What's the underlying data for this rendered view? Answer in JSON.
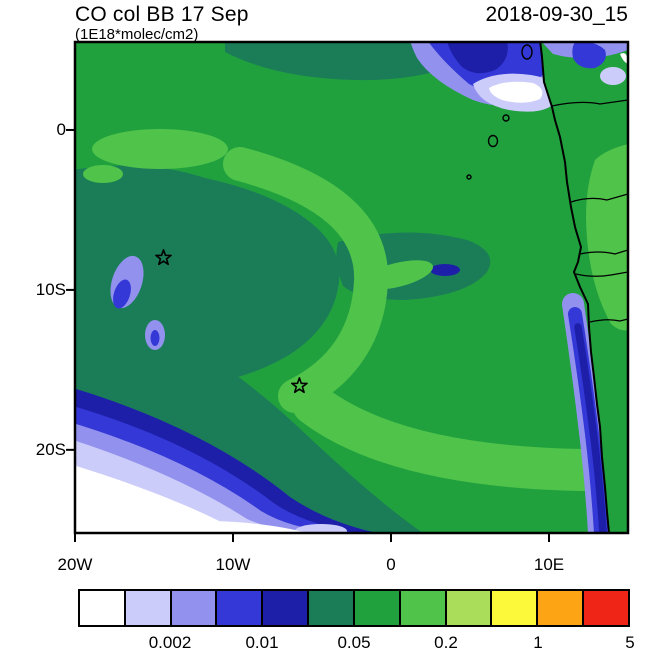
{
  "header": {
    "title": "CO col BB 17 Sep",
    "subtitle": "(1E18*molec/cm2)",
    "datetime": "2018-09-30_15"
  },
  "chart_data": {
    "type": "heatmap",
    "title": "CO col BB 17 Sep",
    "units": "1E18*molec/cm2",
    "time_label": "2018-09-30_15",
    "projection": {
      "lon_min": -20,
      "lon_max": 15,
      "lat_min": -25.2,
      "lat_max": 5.5
    },
    "x_ticks": [
      {
        "lon": -20,
        "label": "20W"
      },
      {
        "lon": -10,
        "label": "10W"
      },
      {
        "lon": 0,
        "label": "0"
      },
      {
        "lon": 10,
        "label": "10E"
      }
    ],
    "y_ticks": [
      {
        "lat": 0,
        "label": "0"
      },
      {
        "lat": -10,
        "label": "10S"
      },
      {
        "lat": -20,
        "label": "20S"
      }
    ],
    "palette": {
      "colors": [
        "#ffffff",
        "#ccccfa",
        "#9292ee",
        "#3338d6",
        "#1d1fa9",
        "#1b7d58",
        "#21a13e",
        "#4fc34a",
        "#aade5a",
        "#fcf93a",
        "#fda414",
        "#ef2617"
      ],
      "levels": [
        0.001,
        0.002,
        0.005,
        0.01,
        0.02,
        0.05,
        0.1,
        0.2,
        0.5,
        1,
        2,
        5
      ],
      "labeled_levels": [
        "0.002",
        "0.01",
        "0.05",
        "0.2",
        "1",
        "5"
      ]
    },
    "markers": [
      {
        "shape": "star",
        "lon": -14.4,
        "lat": -8.0
      },
      {
        "shape": "star",
        "lon": -5.8,
        "lat": -16.0
      }
    ]
  }
}
